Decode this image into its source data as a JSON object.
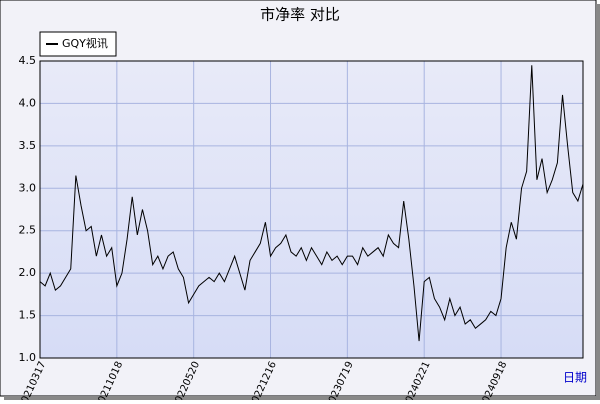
{
  "chart_data": {
    "type": "line",
    "title": "市净率  对比",
    "xlabel": "日期",
    "x": [
      0,
      1,
      2,
      3,
      4,
      5,
      6,
      7,
      8,
      9,
      10,
      11,
      12,
      13,
      14,
      15,
      16,
      17,
      18,
      19,
      20,
      21,
      22,
      23,
      24,
      25,
      26,
      27,
      28,
      29,
      30,
      31,
      32,
      33,
      34,
      35,
      36,
      37,
      38,
      39,
      40,
      41,
      42,
      43,
      44,
      45,
      46,
      47,
      48,
      49,
      50,
      51,
      52,
      53,
      54,
      55,
      56,
      57,
      58,
      59,
      60,
      61,
      62,
      63,
      64,
      65,
      66,
      67,
      68,
      69,
      70,
      71,
      72,
      73,
      74,
      75,
      76,
      77,
      78,
      79,
      80,
      81,
      82,
      83,
      84,
      85,
      86,
      87,
      88,
      89,
      90,
      91,
      92,
      93,
      94,
      95,
      96,
      97,
      98,
      99,
      100,
      101,
      102,
      103,
      104,
      105,
      106
    ],
    "series": [
      {
        "name": "GQY视讯",
        "color": "#000000",
        "values": [
          1.9,
          1.85,
          2.0,
          1.8,
          1.85,
          1.95,
          2.05,
          3.15,
          2.8,
          2.5,
          2.55,
          2.2,
          2.45,
          2.2,
          2.3,
          1.85,
          2.0,
          2.4,
          2.9,
          2.45,
          2.75,
          2.5,
          2.1,
          2.2,
          2.05,
          2.2,
          2.25,
          2.05,
          1.95,
          1.65,
          1.75,
          1.85,
          1.9,
          1.95,
          1.9,
          2.0,
          1.9,
          2.05,
          2.2,
          2.0,
          1.8,
          2.15,
          2.25,
          2.35,
          2.6,
          2.2,
          2.3,
          2.35,
          2.45,
          2.25,
          2.2,
          2.3,
          2.15,
          2.3,
          2.2,
          2.1,
          2.25,
          2.15,
          2.2,
          2.1,
          2.2,
          2.2,
          2.1,
          2.3,
          2.2,
          2.25,
          2.3,
          2.2,
          2.45,
          2.35,
          2.3,
          2.85,
          2.4,
          1.85,
          1.2,
          1.9,
          1.95,
          1.7,
          1.6,
          1.45,
          1.7,
          1.5,
          1.6,
          1.4,
          1.45,
          1.35,
          1.4,
          1.45,
          1.55,
          1.5,
          1.7,
          2.3,
          2.6,
          2.4,
          3.0,
          3.2,
          4.45,
          3.1,
          3.35,
          2.95,
          3.1,
          3.3,
          4.1,
          3.5,
          2.95,
          2.85,
          3.05
        ]
      }
    ],
    "xlim": [
      0,
      106
    ],
    "xticks": [
      {
        "value": 0,
        "label": "20210317"
      },
      {
        "value": 15,
        "label": "20211018"
      },
      {
        "value": 30,
        "label": "20220520"
      },
      {
        "value": 45,
        "label": "20221216"
      },
      {
        "value": 60,
        "label": "20230719"
      },
      {
        "value": 75,
        "label": "20240221"
      },
      {
        "value": 90,
        "label": "20240918"
      }
    ],
    "ylim": [
      1.0,
      4.5
    ],
    "yticks": [
      {
        "value": 1.0,
        "label": "1.0"
      },
      {
        "value": 1.5,
        "label": "1.5"
      },
      {
        "value": 2.0,
        "label": "2.0"
      },
      {
        "value": 2.5,
        "label": "2.5"
      },
      {
        "value": 3.0,
        "label": "3.0"
      },
      {
        "value": 3.5,
        "label": "3.5"
      },
      {
        "value": 4.0,
        "label": "4.0"
      },
      {
        "value": 4.5,
        "label": "4.5"
      }
    ],
    "grid": true,
    "legend": "top-left"
  }
}
